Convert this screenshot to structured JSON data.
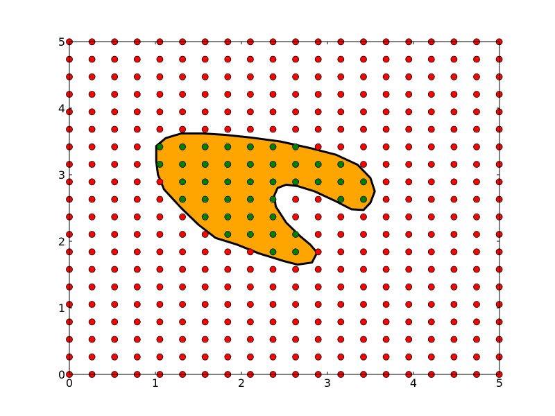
{
  "chart_data": {
    "type": "scatter",
    "title": "",
    "xlabel": "",
    "ylabel": "",
    "xlim": [
      0,
      5
    ],
    "ylim": [
      0,
      5
    ],
    "grid": false,
    "x_ticks": [
      "0",
      "1",
      "2",
      "3",
      "4",
      "5"
    ],
    "y_ticks": [
      "0",
      "1",
      "2",
      "3",
      "4",
      "5"
    ],
    "x_tick_values": [
      0,
      1,
      2,
      3,
      4,
      5
    ],
    "y_tick_values": [
      0,
      1,
      2,
      3,
      4,
      5
    ],
    "point_grid": {
      "x_start": 0,
      "x_step": 0.263,
      "count_x": 20,
      "y_start": 0,
      "y_step": 0.263,
      "count_y": 20
    },
    "colors": {
      "outside_points": "#ff0000",
      "inside_points": "#008000",
      "region_fill": "#ffa500",
      "region_edge": "#000000"
    },
    "region_polygon": [
      [
        1.01,
        3.43
      ],
      [
        1.12,
        3.55
      ],
      [
        1.3,
        3.62
      ],
      [
        1.55,
        3.62
      ],
      [
        1.8,
        3.6
      ],
      [
        2.1,
        3.56
      ],
      [
        2.45,
        3.5
      ],
      [
        2.8,
        3.4
      ],
      [
        3.1,
        3.3
      ],
      [
        3.35,
        3.15
      ],
      [
        3.5,
        2.95
      ],
      [
        3.55,
        2.75
      ],
      [
        3.5,
        2.58
      ],
      [
        3.42,
        2.47
      ],
      [
        3.28,
        2.48
      ],
      [
        3.1,
        2.6
      ],
      [
        2.85,
        2.75
      ],
      [
        2.65,
        2.83
      ],
      [
        2.52,
        2.85
      ],
      [
        2.42,
        2.8
      ],
      [
        2.38,
        2.68
      ],
      [
        2.4,
        2.52
      ],
      [
        2.52,
        2.28
      ],
      [
        2.68,
        2.08
      ],
      [
        2.8,
        1.95
      ],
      [
        2.88,
        1.83
      ],
      [
        2.82,
        1.68
      ],
      [
        2.65,
        1.65
      ],
      [
        2.5,
        1.7
      ],
      [
        2.2,
        1.82
      ],
      [
        1.95,
        1.95
      ],
      [
        1.7,
        2.05
      ],
      [
        1.5,
        2.25
      ],
      [
        1.3,
        2.5
      ],
      [
        1.1,
        2.78
      ],
      [
        1.03,
        3.0
      ],
      [
        1.01,
        3.2
      ]
    ]
  }
}
